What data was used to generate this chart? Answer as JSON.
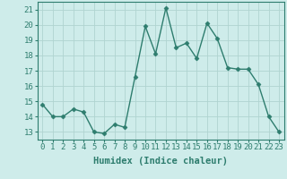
{
  "x": [
    0,
    1,
    2,
    3,
    4,
    5,
    6,
    7,
    8,
    9,
    10,
    11,
    12,
    13,
    14,
    15,
    16,
    17,
    18,
    19,
    20,
    21,
    22,
    23
  ],
  "y": [
    14.8,
    14.0,
    14.0,
    14.5,
    14.3,
    13.0,
    12.9,
    13.5,
    13.3,
    16.6,
    19.9,
    18.1,
    21.1,
    18.5,
    18.8,
    17.8,
    20.1,
    19.1,
    17.2,
    17.1,
    17.1,
    16.1,
    14.0,
    13.0
  ],
  "line_color": "#2e7d6e",
  "marker": "D",
  "marker_size": 2.5,
  "bg_color": "#ceecea",
  "grid_color": "#b0d4d0",
  "xlabel": "Humidex (Indice chaleur)",
  "xlim": [
    -0.5,
    23.5
  ],
  "ylim": [
    12.5,
    21.5
  ],
  "xticks": [
    0,
    1,
    2,
    3,
    4,
    5,
    6,
    7,
    8,
    9,
    10,
    11,
    12,
    13,
    14,
    15,
    16,
    17,
    18,
    19,
    20,
    21,
    22,
    23
  ],
  "yticks": [
    13,
    14,
    15,
    16,
    17,
    18,
    19,
    20,
    21
  ],
  "tick_color": "#2e7d6e",
  "label_fontsize": 6.5,
  "xlabel_fontsize": 7.5
}
